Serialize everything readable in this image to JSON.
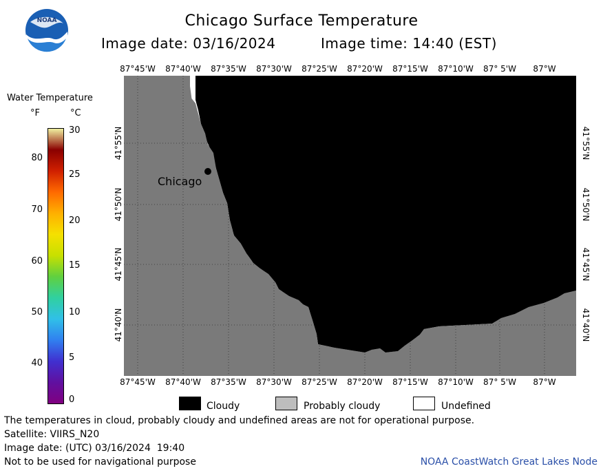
{
  "header": {
    "title": "Chicago Surface Temperature",
    "image_date": "Image date: 03/16/2024",
    "image_time": "Image time: 14:40 (EST)",
    "logo_text": "NOAA"
  },
  "map": {
    "lon_labels": [
      "87°45'W",
      "87°40'W",
      "87°35'W",
      "87°30'W",
      "87°25'W",
      "87°20'W",
      "87°15'W",
      "87°10'W",
      "87° 5'W",
      "87°W"
    ],
    "lat_labels": [
      "41°55'N",
      "41°50'N",
      "41°45'N",
      "41°40'N"
    ],
    "city_label": "Chicago",
    "colors": {
      "land": "#7a7a7a",
      "cloudy": "#000000",
      "undefined": "#ffffff",
      "grid": "#000000"
    }
  },
  "legend": {
    "title": "Water Temperature",
    "unit_f": "°F",
    "unit_c": "°C",
    "f_ticks": [
      "80",
      "70",
      "60",
      "50",
      "40"
    ],
    "c_ticks": [
      "30",
      "25",
      "20",
      "15",
      "10",
      "5",
      "0"
    ],
    "colorbar": [
      "#f0f0a0",
      "#8a0000",
      "#d02000",
      "#ff6a00",
      "#ffb000",
      "#f5e000",
      "#c8e000",
      "#60d040",
      "#30d0a0",
      "#30c0e8",
      "#3080f0",
      "#4030d0",
      "#6010a0",
      "#800080"
    ]
  },
  "key": {
    "cloudy": "Cloudy",
    "probably_cloudy": "Probably cloudy",
    "undefined": "Undefined",
    "colors": {
      "cloudy": "#000000",
      "probably_cloudy": "#bdbdbd",
      "undefined": "#ffffff"
    }
  },
  "footer": {
    "disclaimer": "The temperatures in cloud, probably cloudy and undefined areas are not for operational purpose.",
    "satellite": "Satellite: VIIRS_N20",
    "utc_date": "Image date: (UTC) 03/16/2024  19:40",
    "navigation": "Not to be used for navigational purpose",
    "node": "NOAA CoastWatch Great Lakes Node"
  }
}
